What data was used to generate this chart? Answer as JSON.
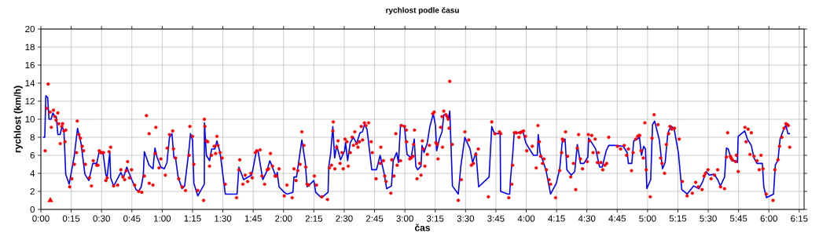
{
  "chart_data": {
    "type": "line",
    "title": "rychlost podle času",
    "xlabel": "čas",
    "ylabel": "rychlost (km/h)",
    "xlim": [
      0,
      6.29
    ],
    "ylim": [
      0,
      20
    ],
    "xticks": [
      {
        "value": 0,
        "label": "0:00"
      },
      {
        "value": 0.25,
        "label": "0:15"
      },
      {
        "value": 0.5,
        "label": "0:30"
      },
      {
        "value": 0.75,
        "label": "0:45"
      },
      {
        "value": 1,
        "label": "1:00"
      },
      {
        "value": 1.25,
        "label": "1:15"
      },
      {
        "value": 1.5,
        "label": "1:30"
      },
      {
        "value": 1.75,
        "label": "1:45"
      },
      {
        "value": 2,
        "label": "2:00"
      },
      {
        "value": 2.25,
        "label": "2:15"
      },
      {
        "value": 2.5,
        "label": "2:30"
      },
      {
        "value": 2.75,
        "label": "2:45"
      },
      {
        "value": 3,
        "label": "3:00"
      },
      {
        "value": 3.25,
        "label": "3:15"
      },
      {
        "value": 3.5,
        "label": "3:30"
      },
      {
        "value": 3.75,
        "label": "3:45"
      },
      {
        "value": 4,
        "label": "4:00"
      },
      {
        "value": 4.25,
        "label": "4:15"
      },
      {
        "value": 4.5,
        "label": "4:30"
      },
      {
        "value": 4.75,
        "label": "4:45"
      },
      {
        "value": 5,
        "label": "5:00"
      },
      {
        "value": 5.25,
        "label": "5:15"
      },
      {
        "value": 5.5,
        "label": "5:30"
      },
      {
        "value": 5.75,
        "label": "5:45"
      },
      {
        "value": 6,
        "label": "6:00"
      },
      {
        "value": 6.25,
        "label": "6:15"
      }
    ],
    "yticks": [
      0,
      2,
      4,
      6,
      8,
      10,
      12,
      14,
      16,
      18,
      20
    ],
    "grid": true,
    "series": [
      {
        "type": "line",
        "color": "#0000ff",
        "marker": "none",
        "x": [
          0.017,
          0.032,
          0.041,
          0.056,
          0.067,
          0.084,
          0.099,
          0.114,
          0.127,
          0.14,
          0.158,
          0.175,
          0.19,
          0.205,
          0.233,
          0.244,
          0.276,
          0.302,
          0.33,
          0.363,
          0.395,
          0.428,
          0.46,
          0.482,
          0.514,
          0.536,
          0.546,
          0.568,
          0.575,
          0.6,
          0.659,
          0.68,
          0.708,
          0.752,
          0.784,
          0.806,
          0.827,
          0.844,
          0.853,
          0.892,
          0.924,
          0.94,
          0.957,
          0.989,
          1.017,
          1.039,
          1.06,
          1.08,
          1.097,
          1.11,
          1.131,
          1.164,
          1.185,
          1.222,
          1.233,
          1.25,
          1.261,
          1.293,
          1.347,
          1.348,
          1.364,
          1.39,
          1.408,
          1.434,
          1.451,
          1.477,
          1.52,
          1.617,
          1.632,
          1.671,
          1.736,
          1.747,
          1.775,
          1.79,
          1.829,
          1.861,
          1.887,
          1.913,
          1.937,
          1.948,
          1.963,
          2.006,
          2.028,
          2.077,
          2.086,
          2.107,
          2.151,
          2.179,
          2.194,
          2.25,
          2.265,
          2.313,
          2.367,
          2.373,
          2.389,
          2.406,
          2.421,
          2.438,
          2.47,
          2.503,
          2.511,
          2.528,
          2.55,
          2.576,
          2.602,
          2.63,
          2.651,
          2.666,
          2.688,
          2.727,
          2.766,
          2.796,
          2.83,
          2.85,
          2.889,
          2.904,
          2.932,
          2.947,
          2.964,
          2.997,
          3.018,
          3.051,
          3.077,
          3.09,
          3.105,
          3.133,
          3.141,
          3.158,
          3.185,
          3.206,
          3.234,
          3.252,
          3.262,
          3.284,
          3.306,
          3.321,
          3.342,
          3.357,
          3.37,
          3.392,
          3.44,
          3.461,
          3.494,
          3.537,
          3.558,
          3.586,
          3.608,
          3.694,
          3.716,
          3.738,
          3.785,
          3.789,
          3.85,
          3.864,
          3.87,
          3.888,
          3.901,
          3.924,
          3.946,
          3.974,
          3.996,
          4.022,
          4.06,
          4.091,
          4.099,
          4.114,
          4.162,
          4.201,
          4.248,
          4.276,
          4.298,
          4.32,
          4.335,
          4.371,
          4.4,
          4.421,
          4.447,
          4.475,
          4.508,
          4.514,
          4.54,
          4.572,
          4.605,
          4.626,
          4.659,
          4.68,
          4.734,
          4.799,
          4.832,
          4.842,
          4.87,
          4.886,
          4.918,
          4.933,
          4.95,
          4.968,
          4.983,
          4.994,
          5.026,
          5.041,
          5.058,
          5.097,
          5.123,
          5.145,
          5.166,
          5.174,
          5.196,
          5.218,
          5.254,
          5.282,
          5.326,
          5.38,
          5.423,
          5.455,
          5.483,
          5.509,
          5.548,
          5.578,
          5.6,
          5.635,
          5.65,
          5.665,
          5.693,
          5.725,
          5.74,
          5.747,
          5.801,
          5.823,
          5.855,
          5.877,
          5.902,
          5.93,
          5.946,
          5.958,
          5.98,
          6.038,
          6.053,
          6.075,
          6.092,
          6.125,
          6.14,
          6.157,
          6.174
        ],
        "values": [
          8.0,
          8.0,
          12.6,
          12.4,
          10.0,
          10.0,
          10.7,
          10.3,
          10.3,
          8.3,
          8.3,
          9.2,
          8.7,
          3.9,
          2.8,
          3.6,
          6.0,
          9.0,
          7.4,
          3.9,
          3.2,
          5.1,
          5.1,
          6.5,
          6.1,
          3.8,
          3.6,
          6.3,
          3.5,
          2.6,
          4.1,
          3.5,
          4.7,
          3.2,
          2.2,
          2.0,
          2.5,
          3.8,
          6.4,
          4.9,
          4.5,
          6.8,
          5.8,
          4.7,
          4.5,
          5.2,
          8.0,
          8.4,
          5.7,
          5.7,
          3.6,
          2.3,
          2.6,
          6.8,
          8.4,
          7.7,
          2.9,
          1.5,
          2.8,
          9.6,
          6.0,
          5.4,
          6.7,
          6.7,
          7.6,
          6.3,
          1.7,
          1.7,
          4.7,
          3.3,
          3.8,
          4.4,
          6.4,
          6.5,
          3.3,
          4.2,
          5.4,
          4.5,
          3.6,
          4.1,
          2.5,
          1.9,
          1.7,
          1.9,
          3.6,
          3.6,
          7.7,
          5.2,
          2.5,
          3.2,
          1.9,
          1.3,
          1.9,
          4.8,
          6.3,
          9.2,
          5.7,
          7.1,
          5.5,
          6.5,
          7.4,
          5.4,
          7.4,
          8.0,
          7.3,
          8.5,
          8.6,
          9.4,
          8.9,
          4.4,
          4.4,
          6.0,
          3.9,
          2.3,
          2.6,
          5.4,
          6.3,
          5.2,
          9.4,
          9.2,
          6.1,
          5.7,
          7.8,
          4.8,
          4.4,
          4.8,
          7.1,
          6.3,
          7.4,
          9.2,
          10.6,
          9.3,
          6.5,
          7.8,
          8.6,
          10.5,
          10.5,
          9.9,
          10.9,
          2.6,
          1.7,
          4.8,
          8.0,
          6.7,
          5.2,
          6.3,
          2.5,
          3.6,
          9.2,
          8.4,
          8.4,
          2.0,
          1.7,
          1.7,
          3.3,
          6.0,
          8.5,
          8.4,
          8.6,
          8.6,
          7.4,
          6.8,
          6.0,
          6.0,
          8.3,
          6.3,
          4.4,
          1.7,
          2.9,
          4.5,
          7.7,
          7.8,
          4.4,
          3.8,
          4.2,
          7.2,
          5.1,
          5.1,
          5.8,
          7.9,
          7.4,
          6.7,
          4.7,
          4.7,
          6.5,
          7.1,
          7.1,
          7.0,
          6.3,
          5.1,
          5.1,
          7.6,
          7.8,
          8.0,
          6.0,
          7.0,
          6.7,
          2.3,
          3.3,
          9.4,
          9.8,
          7.7,
          4.5,
          5.2,
          8.3,
          8.7,
          9.2,
          9.0,
          6.3,
          2.2,
          1.7,
          2.6,
          2.3,
          3.1,
          4.2,
          3.8,
          3.9,
          3.3,
          2.6,
          3.6,
          6.8,
          6.7,
          5.4,
          5.4,
          5.2,
          8.1,
          8.7,
          7.8,
          7.1,
          5.7,
          5.1,
          5.1,
          5.1,
          2.5,
          1.3,
          1.7,
          4.9,
          5.5,
          7.8,
          9.0,
          9.3,
          8.4,
          8.4
        ]
      },
      {
        "type": "scatter",
        "color": "#ff0000",
        "marker": "circle",
        "x": [
          0.035,
          0.048,
          0.06,
          0.076,
          0.086,
          0.104,
          0.114,
          0.125,
          0.14,
          0.147,
          0.16,
          0.173,
          0.179,
          0.19,
          0.199,
          0.205,
          0.238,
          0.255,
          0.276,
          0.294,
          0.3,
          0.313,
          0.326,
          0.341,
          0.352,
          0.367,
          0.4,
          0.417,
          0.432,
          0.46,
          0.471,
          0.482,
          0.492,
          0.503,
          0.516,
          0.536,
          0.546,
          0.562,
          0.575,
          0.6,
          0.633,
          0.659,
          0.676,
          0.691,
          0.704,
          0.715,
          0.73,
          0.747,
          0.773,
          0.806,
          0.832,
          0.853,
          0.87,
          0.892,
          0.893,
          0.924,
          0.942,
          0.948,
          0.974,
          0.989,
          1.026,
          1.041,
          1.06,
          1.086,
          1.093,
          1.11,
          1.136,
          1.164,
          1.192,
          1.222,
          1.228,
          1.25,
          1.261,
          1.293,
          1.341,
          1.347,
          1.352,
          1.364,
          1.375,
          1.39,
          1.406,
          1.429,
          1.44,
          1.451,
          1.459,
          1.477,
          1.494,
          1.52,
          1.613,
          1.632,
          1.639,
          1.665,
          1.684,
          1.704,
          1.73,
          1.742,
          1.768,
          1.779,
          1.807,
          1.822,
          1.844,
          1.866,
          1.876,
          1.892,
          1.909,
          1.93,
          1.941,
          1.963,
          2.006,
          2.028,
          2.071,
          2.086,
          2.103,
          2.118,
          2.136,
          2.151,
          2.168,
          2.183,
          2.194,
          2.207,
          2.254,
          2.272,
          2.315,
          2.362,
          2.378,
          2.395,
          2.406,
          2.41,
          2.423,
          2.438,
          2.449,
          2.466,
          2.481,
          2.492,
          2.507,
          2.522,
          2.533,
          2.55,
          2.565,
          2.576,
          2.587,
          2.602,
          2.613,
          2.625,
          2.64,
          2.651,
          2.666,
          2.679,
          2.701,
          2.722,
          2.731,
          2.763,
          2.796,
          2.802,
          2.823,
          2.834,
          2.845,
          2.884,
          2.892,
          2.91,
          2.925,
          2.936,
          2.964,
          2.971,
          2.997,
          3.012,
          3.014,
          3.04,
          3.051,
          3.066,
          3.072,
          3.079,
          3.1,
          3.122,
          3.133,
          3.144,
          3.152,
          3.165,
          3.185,
          3.202,
          3.23,
          3.241,
          3.256,
          3.267,
          3.273,
          3.295,
          3.306,
          3.31,
          3.321,
          3.338,
          3.349,
          3.357,
          3.364,
          3.37,
          3.39,
          3.44,
          3.465,
          3.494,
          3.526,
          3.548,
          3.565,
          3.584,
          3.605,
          3.688,
          3.716,
          3.742,
          3.779,
          3.789,
          3.856,
          3.881,
          3.888,
          3.903,
          3.92,
          3.94,
          3.95,
          3.963,
          3.978,
          3.994,
          4.004,
          4.05,
          4.082,
          4.097,
          4.108,
          4.119,
          4.134,
          4.147,
          4.166,
          4.188,
          4.201,
          4.242,
          4.276,
          4.292,
          4.298,
          4.307,
          4.324,
          4.341,
          4.367,
          4.389,
          4.408,
          4.421,
          4.432,
          4.447,
          4.464,
          4.503,
          4.512,
          4.523,
          4.54,
          4.551,
          4.568,
          4.587,
          4.594,
          4.616,
          4.631,
          4.648,
          4.663,
          4.68,
          4.752,
          4.778,
          4.808,
          4.827,
          4.842,
          4.868,
          4.881,
          4.903,
          4.918,
          4.929,
          4.935,
          4.946,
          4.965,
          4.978,
          4.989,
          5.022,
          5.037,
          5.054,
          5.086,
          5.108,
          5.119,
          5.14,
          5.155,
          5.174,
          5.185,
          5.2,
          5.222,
          5.261,
          5.287,
          5.326,
          5.369,
          5.397,
          5.418,
          5.449,
          5.466,
          5.477,
          5.498,
          5.524,
          5.552,
          5.578,
          5.602,
          5.634,
          5.65,
          5.66,
          5.682,
          5.688,
          5.699,
          5.725,
          5.732,
          5.747,
          5.803,
          5.812,
          5.829,
          5.844,
          5.855,
          5.877,
          5.902,
          5.92,
          5.935,
          5.952,
          5.978,
          6.034,
          6.049,
          6.075,
          6.088,
          6.107,
          6.125,
          6.14,
          6.151,
          6.16,
          6.172
        ],
        "values": [
          6.5,
          11.2,
          13.9,
          10.8,
          9.1,
          11.0,
          10.3,
          9.9,
          10.7,
          9.5,
          7.3,
          9.2,
          9.5,
          8.7,
          7.5,
          8.8,
          2.5,
          3.4,
          5.0,
          6.3,
          9.8,
          8.3,
          7.9,
          7.0,
          6.5,
          5.0,
          3.5,
          2.6,
          5.4,
          4.9,
          4.9,
          6.5,
          6.3,
          6.3,
          6.3,
          3.2,
          3.5,
          6.4,
          6.9,
          2.6,
          2.7,
          4.4,
          3.6,
          3.3,
          4.3,
          5.3,
          3.5,
          4.4,
          2.7,
          2.0,
          1.9,
          3.7,
          10.4,
          8.4,
          2.9,
          2.7,
          6.2,
          9.1,
          4.6,
          5.6,
          3.8,
          6.8,
          8.3,
          8.7,
          6.7,
          5.7,
          3.4,
          2.5,
          2.1,
          6.0,
          9.2,
          8.1,
          5.0,
          2.1,
          1.0,
          10.0,
          9.2,
          7.6,
          7.5,
          4.8,
          6.0,
          7.0,
          6.2,
          8.1,
          7.1,
          6.3,
          5.7,
          2.8,
          1.3,
          4.4,
          5.5,
          2.8,
          3.8,
          3.1,
          4.0,
          3.5,
          6.3,
          6.5,
          6.6,
          3.7,
          2.8,
          4.4,
          4.5,
          6.2,
          4.8,
          3.7,
          3.7,
          4.5,
          1.5,
          2.7,
          1.3,
          4.5,
          3.2,
          4.3,
          5.0,
          8.6,
          7.1,
          4.7,
          2.8,
          2.7,
          3.7,
          2.7,
          1.4,
          1.1,
          4.6,
          4.9,
          8.7,
          9.7,
          4.5,
          6.9,
          7.6,
          5.1,
          6.3,
          4.5,
          7.8,
          7.5,
          4.8,
          6.3,
          8.0,
          7.1,
          8.6,
          7.3,
          6.9,
          7.5,
          9.2,
          7.7,
          9.6,
          9.3,
          9.6,
          7.5,
          6.3,
          3.4,
          5.1,
          6.9,
          5.4,
          3.7,
          3.1,
          1.8,
          5.5,
          3.7,
          8.4,
          4.9,
          5.4,
          9.3,
          9.2,
          8.8,
          7.5,
          5.6,
          5.7,
          5.9,
          7.2,
          8.8,
          3.4,
          5.1,
          3.8,
          7.6,
          6.7,
          4.8,
          6.1,
          7.1,
          10.6,
          10.8,
          7.4,
          7.2,
          5.6,
          9.1,
          10.3,
          6.9,
          10.9,
          10.5,
          10.3,
          10.0,
          9.0,
          14.2,
          7.2,
          1.0,
          3.3,
          8.6,
          7.7,
          4.9,
          5.1,
          6.1,
          6.7,
          1.4,
          9.7,
          8.4,
          8.6,
          8.4,
          1.3,
          2.8,
          4.9,
          8.5,
          8.5,
          8.0,
          8.5,
          8.6,
          8.7,
          8.1,
          6.5,
          7.0,
          4.6,
          9.3,
          7.5,
          5.9,
          5.1,
          5.6,
          4.4,
          3.3,
          2.8,
          1.3,
          4.3,
          6.3,
          7.8,
          7.6,
          8.6,
          5.9,
          3.6,
          5.1,
          2.2,
          6.8,
          8.3,
          5.6,
          4.5,
          5.3,
          8.3,
          7.6,
          8.2,
          6.3,
          7.8,
          5.2,
          6.3,
          5.2,
          4.4,
          4.9,
          5.1,
          8.0,
          7.0,
          6.7,
          7.1,
          6.0,
          6.7,
          4.3,
          6.3,
          7.8,
          8.1,
          8.2,
          8.2,
          6.5,
          5.7,
          9.6,
          4.4,
          1.4,
          7.9,
          10.5,
          9.4,
          5.7,
          5.1,
          4.0,
          7.2,
          8.4,
          9.2,
          8.9,
          9.0,
          7.8,
          3.1,
          1.5,
          1.8,
          3.0,
          2.5,
          2.2,
          3.7,
          4.0,
          4.4,
          3.4,
          3.8,
          4.4,
          2.5,
          2.3,
          5.8,
          8.5,
          5.9,
          5.7,
          5.5,
          5.3,
          6.0,
          4.2,
          9.1,
          7.5,
          8.9,
          6.1,
          8.5,
          5.9,
          5.4,
          4.4,
          6.0,
          4.5,
          1.7,
          1.0,
          4.4,
          5.5,
          7.0,
          8.0,
          9.0,
          9.5,
          9.4,
          9.3,
          6.9
        ]
      },
      {
        "type": "scatter",
        "color": "#ff0000",
        "marker": "triangle",
        "x": [
          0.078
        ],
        "values": [
          1.0
        ]
      }
    ]
  }
}
